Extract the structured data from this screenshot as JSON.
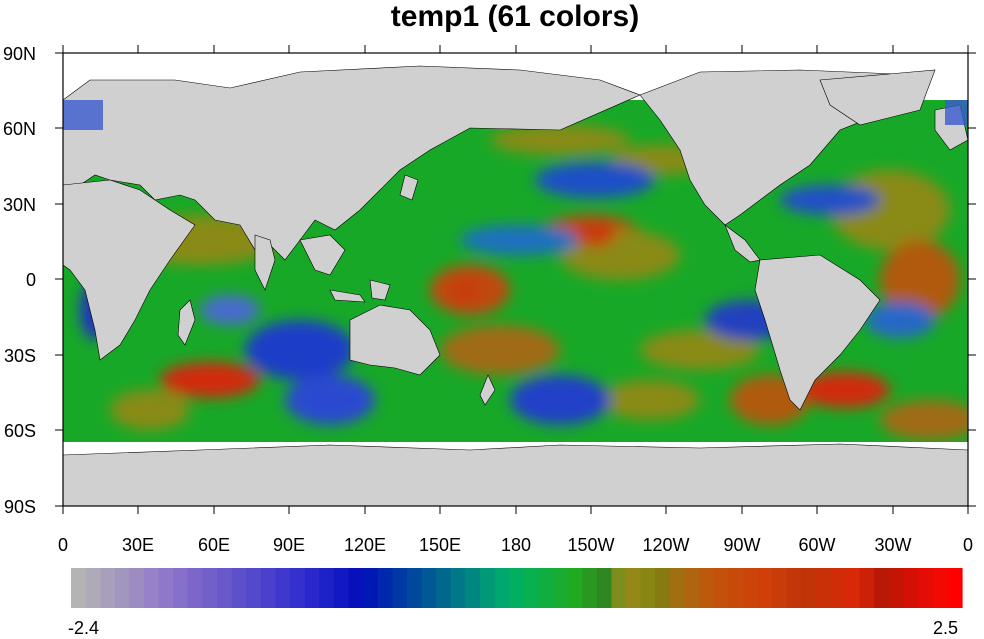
{
  "title": "temp1 (61 colors)",
  "map": {
    "projection": "cylindrical equidistant",
    "land_color": "#d0d0d0",
    "ocean_field": "temp1 anomaly (global SST-like field)",
    "lat_ticks": [
      "90N",
      "60N",
      "30N",
      "0",
      "30S",
      "60S",
      "90S"
    ],
    "lon_ticks": [
      "0",
      "30E",
      "60E",
      "90E",
      "120E",
      "150E",
      "180",
      "150W",
      "120W",
      "90W",
      "60W",
      "30W",
      "0"
    ]
  },
  "colorbar": {
    "min_label": "-2.4",
    "max_label": "2.5",
    "n_colors": 61,
    "colors": [
      "#b4b4b4",
      "#aeaab7",
      "#a8a0bb",
      "#a296be",
      "#9c8cc2",
      "#9682c6",
      "#8e78c8",
      "#8670c9",
      "#7c66c9",
      "#7260ca",
      "#6858ca",
      "#5e50cb",
      "#5448cb",
      "#4a40cc",
      "#3e38cc",
      "#3430cd",
      "#2a28cd",
      "#1e20c8",
      "#1218c2",
      "#0810bc",
      "#0018b4",
      "#0028ac",
      "#0038a4",
      "#00489c",
      "#005894",
      "#00688c",
      "#007888",
      "#008880",
      "#009878",
      "#00a870",
      "#00b060",
      "#08b050",
      "#10ae40",
      "#18ac30",
      "#20aa20",
      "#289820",
      "#308620",
      "#7e8e1c",
      "#948818",
      "#8a8614",
      "#867a10",
      "#a07010",
      "#b06410",
      "#bc5a0c",
      "#c4500c",
      "#c84a0a",
      "#cc440a",
      "#d03e0a",
      "#c83c0a",
      "#c2360a",
      "#c03408",
      "#c83008",
      "#d02c08",
      "#d82808",
      "#cc2008",
      "#b81806",
      "#c41404",
      "#d41004",
      "#e40c04",
      "#f40804",
      "#ff0000"
    ]
  }
}
